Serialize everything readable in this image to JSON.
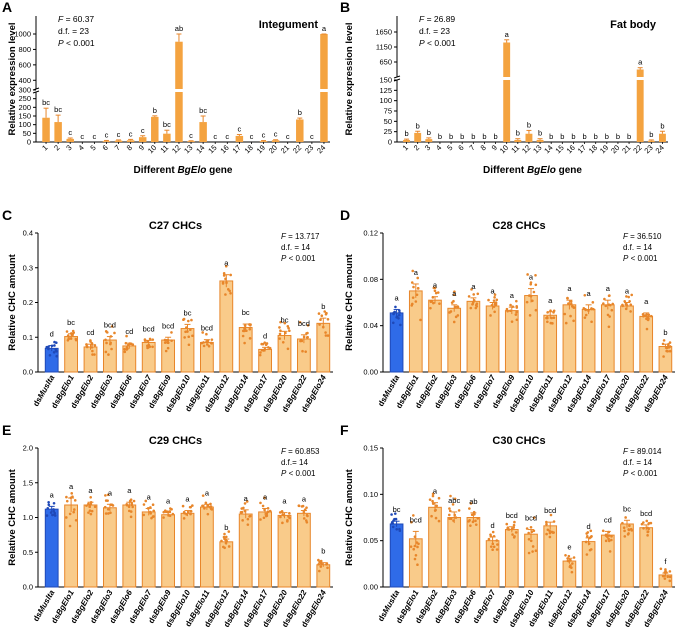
{
  "figure": {
    "panels": [
      "A",
      "B",
      "C",
      "D",
      "E",
      "F"
    ],
    "ylabel_expression": "Relative expression level",
    "ylabel_chc": "Relative CHC amount",
    "xlabel_prefix": "Different ",
    "xlabel_gene": "BgElo",
    "xlabel_suffix": " gene"
  },
  "colors": {
    "orange": "#F4A340",
    "orange_light": "#F9CB8A",
    "orange_dark": "#E8862A",
    "blue": "#2F6BE8",
    "blue_dark": "#1F49B8",
    "axis": "#000000"
  },
  "chart_data": [
    {
      "panel": "A",
      "type": "bar",
      "title": "Integument",
      "stats": [
        "F = 60.37",
        "d.f. = 23",
        "P < 0.001"
      ],
      "categories": [
        "1",
        "2",
        "3",
        "4",
        "5",
        "6",
        "7",
        "8",
        "9",
        "10",
        "11",
        "12",
        "13",
        "14",
        "15",
        "16",
        "17",
        "18",
        "19",
        "20",
        "21",
        "22",
        "23",
        "24"
      ],
      "values": [
        140,
        115,
        18,
        0,
        0,
        5,
        8,
        10,
        28,
        145,
        48,
        900,
        5,
        115,
        0,
        0,
        35,
        0,
        5,
        10,
        0,
        130,
        0,
        1000
      ],
      "errors": [
        55,
        40,
        5,
        0,
        0,
        4,
        4,
        5,
        8,
        6,
        20,
        170,
        2,
        35,
        0,
        0,
        8,
        0,
        3,
        3,
        0,
        8,
        0,
        40
      ],
      "letters": [
        "bc",
        "bc",
        "c",
        "c",
        "c",
        "c",
        "c",
        "c",
        "c",
        "b",
        "bc",
        "ab",
        "c",
        "bc",
        "c",
        "c",
        "c",
        "c",
        "c",
        "c",
        "c",
        "b",
        "c",
        "a"
      ],
      "ylim": [
        0,
        1000
      ],
      "y_broken": true,
      "yticks": [
        0,
        50,
        100,
        150,
        200,
        250,
        300,
        400,
        600,
        800,
        1000
      ],
      "ytick_labels": [
        "0",
        "50",
        "100",
        "150",
        "200",
        "250",
        "300",
        "400",
        "600",
        "800",
        "1000"
      ],
      "xlabel": "Different BgElo gene"
    },
    {
      "panel": "B",
      "type": "bar",
      "title": "Fat body",
      "stats": [
        "F = 26.89",
        "d.f. = 23",
        "P < 0.001"
      ],
      "categories": [
        "1",
        "2",
        "3",
        "4",
        "5",
        "6",
        "7",
        "8",
        "9",
        "10",
        "11",
        "12",
        "13",
        "14",
        "15",
        "16",
        "17",
        "18",
        "19",
        "20",
        "21",
        "22",
        "23",
        "24"
      ],
      "values": [
        5,
        22,
        7,
        0,
        0,
        0,
        0,
        0,
        0,
        1300,
        5,
        20,
        5,
        0,
        0,
        0,
        0,
        0,
        0,
        0,
        0,
        400,
        3,
        20
      ],
      "errors": [
        2,
        4,
        3,
        0,
        0,
        0,
        0,
        0,
        0,
        90,
        3,
        8,
        3,
        0,
        0,
        0,
        0,
        0,
        0,
        0,
        0,
        60,
        2,
        6
      ],
      "letters": [
        "b",
        "b",
        "b",
        "b",
        "b",
        "b",
        "b",
        "b",
        "b",
        "a",
        "b",
        "b",
        "b",
        "b",
        "b",
        "b",
        "b",
        "b",
        "b",
        "b",
        "b",
        "a",
        "b",
        "b"
      ],
      "y_broken": true,
      "yticks": [
        0,
        25,
        50,
        75,
        100,
        125,
        150,
        650,
        1150,
        1650
      ],
      "ytick_labels": [
        "0",
        "25",
        "50",
        "75",
        "100",
        "125",
        "150",
        "650",
        "1150",
        "1650"
      ],
      "xlabel": "Different BgElo gene"
    },
    {
      "panel": "C",
      "type": "bar",
      "title": "C27 CHCs",
      "stats": [
        "F = 13.717",
        "d.f. = 14",
        "P < 0.001"
      ],
      "categories": [
        "dsMuslta",
        "dsBgElo1",
        "dsBgElo2",
        "dsBgElo3",
        "dsBgElo6",
        "dsBgElo7",
        "dsBgElo9",
        "dsBgElo10",
        "dsBgElo11",
        "dsBgElo12",
        "dsBgElo14",
        "dsBgElo17",
        "dsBgElo20",
        "dsBgElo22",
        "dsBgElo24"
      ],
      "values": [
        0.068,
        0.102,
        0.072,
        0.092,
        0.075,
        0.085,
        0.092,
        0.125,
        0.085,
        0.262,
        0.128,
        0.065,
        0.105,
        0.095,
        0.14
      ],
      "errors": [
        0.008,
        0.008,
        0.008,
        0.01,
        0.008,
        0.006,
        0.008,
        0.012,
        0.008,
        0.018,
        0.01,
        0.006,
        0.012,
        0.012,
        0.015
      ],
      "letters": [
        "d",
        "bc",
        "cd",
        "bcd",
        "cd",
        "bcd",
        "bcd",
        "bc",
        "bcd",
        "a",
        "bc",
        "d",
        "bc",
        "bcd",
        "b"
      ],
      "ylim": [
        0,
        0.4
      ],
      "yticks": [
        0,
        0.1,
        0.2,
        0.3,
        0.4
      ],
      "ytick_labels": [
        "0.0",
        "0.1",
        "0.2",
        "0.3",
        "0.4"
      ]
    },
    {
      "panel": "D",
      "type": "bar",
      "title": "C28 CHCs",
      "stats": [
        "F = 36.510",
        "d.f. = 14",
        "P < 0.001"
      ],
      "categories": [
        "dsMuslta",
        "dsBgElo1",
        "dsBgElo2",
        "dsBgElo3",
        "dsBgElo6",
        "dsBgElo7",
        "dsBgElo9",
        "dsBgElo10",
        "dsBgElo11",
        "dsBgElo12",
        "dsBgElo14",
        "dsBgElo17",
        "dsBgElo20",
        "dsBgElo22",
        "dsBgElo24"
      ],
      "values": [
        0.051,
        0.07,
        0.062,
        0.055,
        0.061,
        0.057,
        0.053,
        0.066,
        0.049,
        0.058,
        0.054,
        0.058,
        0.057,
        0.048,
        0.022
      ],
      "errors": [
        0.003,
        0.006,
        0.003,
        0.003,
        0.003,
        0.003,
        0.003,
        0.006,
        0.003,
        0.004,
        0.004,
        0.004,
        0.003,
        0.003,
        0.002
      ],
      "letters": [
        "a",
        "a",
        "a",
        "a",
        "a",
        "a",
        "a",
        "a",
        "a",
        "a",
        "a",
        "a",
        "a",
        "a",
        "b"
      ],
      "ylim": [
        0,
        0.12
      ],
      "yticks": [
        0,
        0.04,
        0.08,
        0.12
      ],
      "ytick_labels": [
        "0.00",
        "0.04",
        "0.08",
        "0.12"
      ]
    },
    {
      "panel": "E",
      "type": "bar",
      "title": "C29 CHCs",
      "stats": [
        "F = 60.853",
        "d.f.= 14",
        "P < 0.001"
      ],
      "categories": [
        "dsMuslta",
        "dsBgElo1",
        "dsBgElo2",
        "dsBgElo3",
        "dsBgElo6",
        "dsBgElo7",
        "dsBgElo9",
        "dsBgElo10",
        "dsBgElo11",
        "dsBgElo12",
        "dsBgElo14",
        "dsBgElo17",
        "dsBgElo20",
        "dsBgElo22",
        "dsBgElo24"
      ],
      "values": [
        1.12,
        1.18,
        1.18,
        1.14,
        1.18,
        1.08,
        1.04,
        1.06,
        1.15,
        0.65,
        1.05,
        1.08,
        1.03,
        1.06,
        0.32
      ],
      "errors": [
        0.04,
        0.1,
        0.04,
        0.05,
        0.04,
        0.05,
        0.03,
        0.04,
        0.04,
        0.04,
        0.06,
        0.05,
        0.04,
        0.04,
        0.03
      ],
      "letters": [
        "a",
        "a",
        "a",
        "a",
        "a",
        "a",
        "a",
        "a",
        "a",
        "b",
        "a",
        "a",
        "a",
        "a",
        "b"
      ],
      "ylim": [
        0,
        2.0
      ],
      "yticks": [
        0,
        0.5,
        1.0,
        1.5,
        2.0
      ],
      "ytick_labels": [
        "0.0",
        "0.5",
        "1.0",
        "1.5",
        "2.0"
      ]
    },
    {
      "panel": "F",
      "type": "bar",
      "title": "C30 CHCs",
      "stats": [
        "F = 89.014",
        "d.f. = 14",
        "P < 0.001"
      ],
      "categories": [
        "dsMuslta",
        "dsBgElo1",
        "dsBgElo2",
        "dsBgElo3",
        "dsBgElo6",
        "dsBgElo7",
        "dsBgElo9",
        "dsBgElo10",
        "dsBgElo11",
        "dsBgElo12",
        "dsBgElo14",
        "dsBgElo17",
        "dsBgElo20",
        "dsBgElo22",
        "dsBgElo24"
      ],
      "values": [
        0.068,
        0.052,
        0.086,
        0.075,
        0.075,
        0.05,
        0.062,
        0.057,
        0.066,
        0.028,
        0.049,
        0.056,
        0.068,
        0.064,
        0.013
      ],
      "errors": [
        0.003,
        0.008,
        0.005,
        0.006,
        0.005,
        0.004,
        0.003,
        0.005,
        0.004,
        0.003,
        0.004,
        0.004,
        0.004,
        0.003,
        0.002
      ],
      "letters": [
        "bc",
        "bcd",
        "a",
        "abc",
        "ab",
        "d",
        "bcd",
        "bcd",
        "bcd",
        "e",
        "d",
        "cd",
        "bc",
        "bcd",
        "f"
      ],
      "ylim": [
        0,
        0.15
      ],
      "yticks": [
        0,
        0.05,
        0.1,
        0.15
      ],
      "ytick_labels": [
        "0.00",
        "0.05",
        "0.10",
        "0.15"
      ]
    }
  ]
}
